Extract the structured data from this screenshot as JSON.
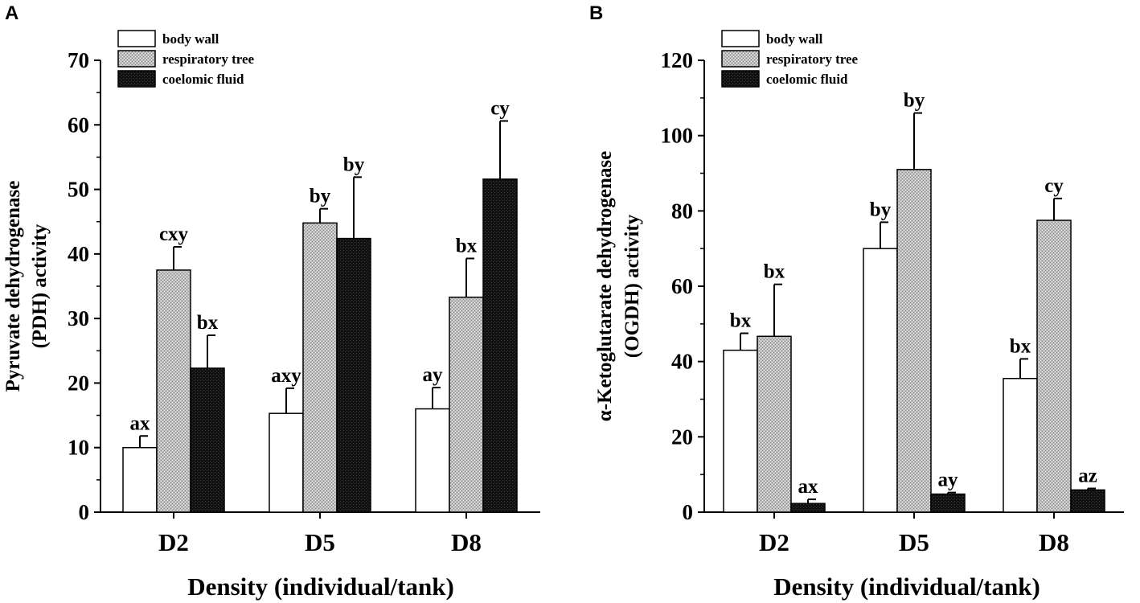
{
  "chart_data": [
    {
      "panel_label": "A",
      "type": "bar",
      "xlabel": "Density (individual/tank)",
      "ylabel_lines": [
        "Pyruvate dehydrogenase",
        "(PDH) activity"
      ],
      "categories": [
        "D2",
        "D5",
        "D8"
      ],
      "ylim": [
        0,
        70
      ],
      "yticks": [
        "0",
        "10",
        "20",
        "30",
        "40",
        "50",
        "60",
        "70"
      ],
      "legend": [
        "body wall",
        "respiratory tree",
        "coelomic fluid"
      ],
      "series": [
        {
          "name": "body wall",
          "values": [
            10,
            15.3,
            16
          ],
          "errors": [
            1.8,
            3.9,
            3.3
          ],
          "labels": [
            "ax",
            "axy",
            "ay"
          ]
        },
        {
          "name": "respiratory tree",
          "values": [
            37.5,
            44.8,
            33.3
          ],
          "errors": [
            3.6,
            2.2,
            6
          ],
          "labels": [
            "cxy",
            "by",
            "bx"
          ]
        },
        {
          "name": "coelomic fluid",
          "values": [
            22.3,
            42.4,
            51.6
          ],
          "errors": [
            5.1,
            9.5,
            9
          ],
          "labels": [
            "bx",
            "by",
            "cy"
          ]
        }
      ]
    },
    {
      "panel_label": "B",
      "type": "bar",
      "xlabel": "Density (individual/tank)",
      "ylabel_lines": [
        "α-Ketoglutarate dehydrogenase",
        "(OGDH) activity"
      ],
      "categories": [
        "D2",
        "D5",
        "D8"
      ],
      "ylim": [
        0,
        120
      ],
      "yticks": [
        "0",
        "20",
        "40",
        "60",
        "80",
        "100",
        "120"
      ],
      "legend": [
        "body wall",
        "respiratory tree",
        "coelomic fluid"
      ],
      "series": [
        {
          "name": "body wall",
          "values": [
            43,
            70,
            35.5
          ],
          "errors": [
            4.5,
            7,
            5.2
          ],
          "labels": [
            "bx",
            "by",
            "bx"
          ]
        },
        {
          "name": "respiratory tree",
          "values": [
            46.7,
            91,
            77.5
          ],
          "errors": [
            13.8,
            15,
            5.8
          ],
          "labels": [
            "bx",
            "by",
            "cy"
          ]
        },
        {
          "name": "coelomic fluid",
          "values": [
            2.3,
            4.8,
            5.9
          ],
          "errors": [
            1.1,
            0.4,
            0.4
          ],
          "labels": [
            "ax",
            "ay",
            "az"
          ]
        }
      ]
    }
  ]
}
